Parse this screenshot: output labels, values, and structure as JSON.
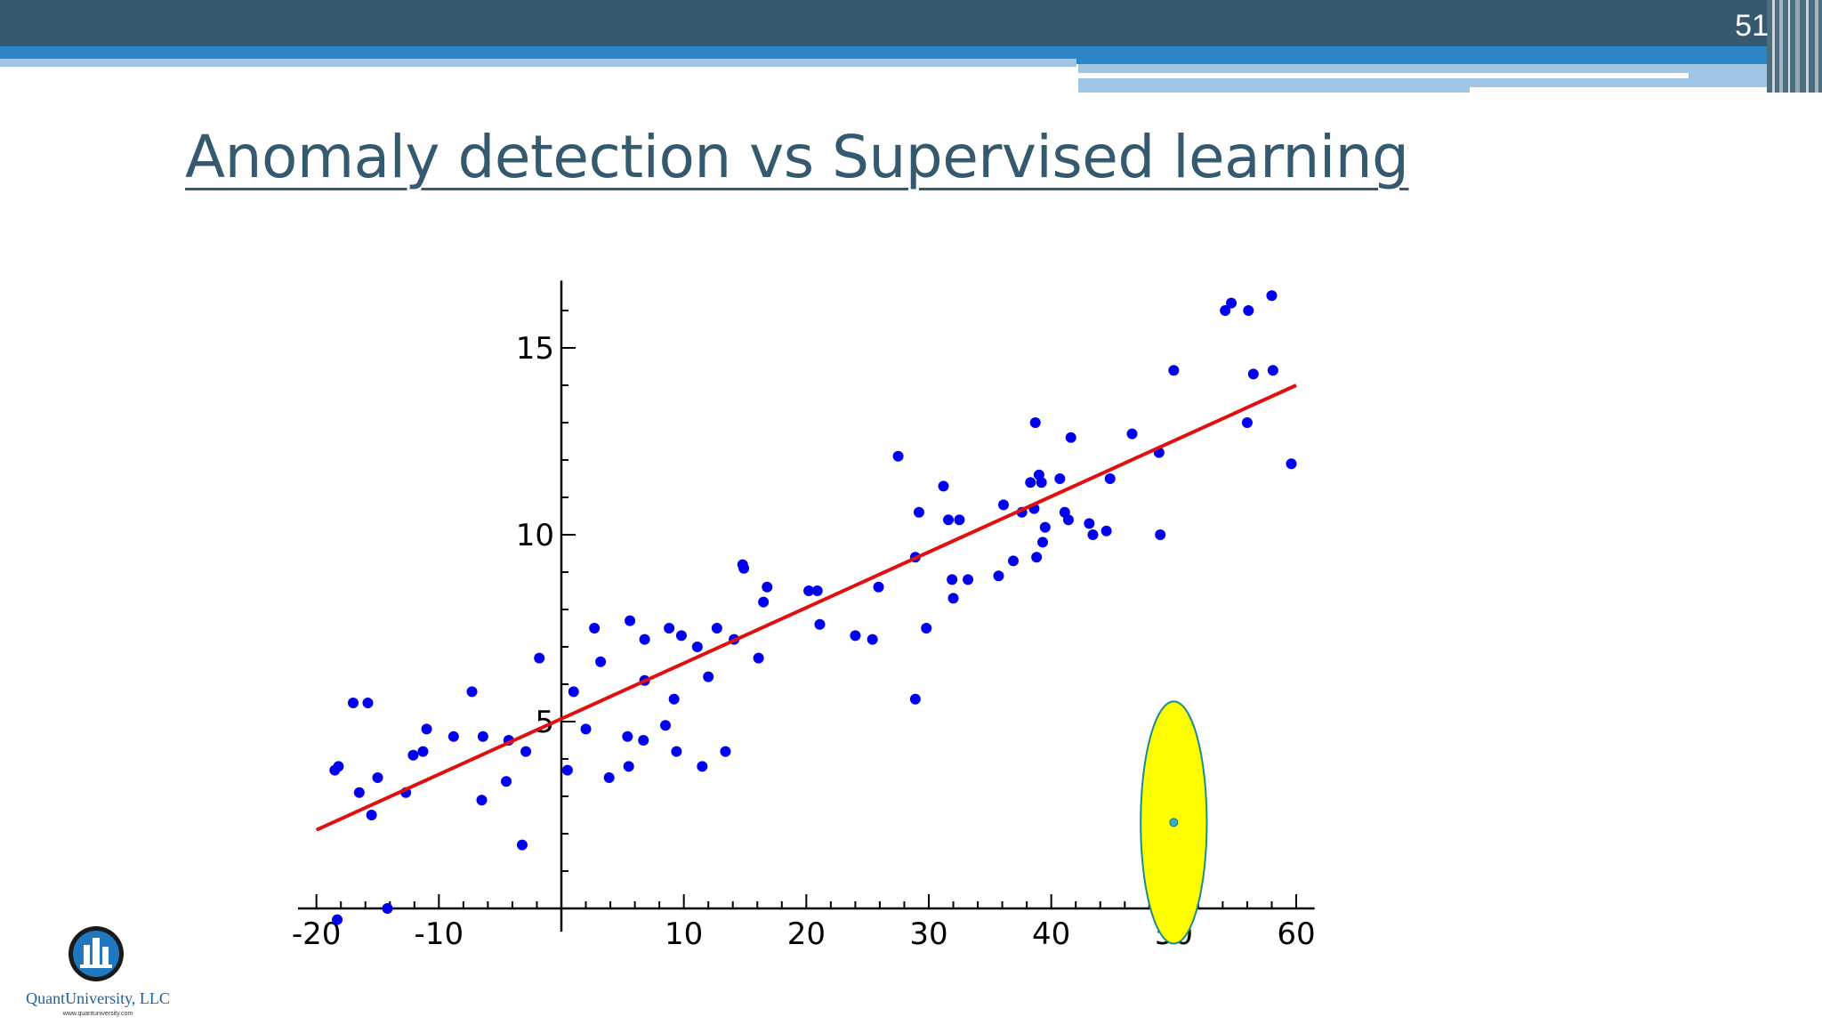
{
  "slide": {
    "number": "51",
    "title": "Anomaly detection vs Supervised learning"
  },
  "logo": {
    "name": "QuantUniversity, LLC",
    "url": "www.quantuniversity.com"
  },
  "colors": {
    "header_dark": "#35596e",
    "header_blue": "#2c86c6",
    "header_light": "#9fc6e6",
    "points": "#0000ee",
    "fit_line": "#e01010",
    "anomaly_fill": "#ffff00",
    "anomaly_stroke": "#1e8c8c",
    "anomaly_point": "#30b0d0"
  },
  "chart_data": {
    "type": "scatter",
    "xlim": [
      -21.5,
      61.5
    ],
    "ylim": [
      0,
      16.8
    ],
    "xticks": [
      -20,
      -10,
      10,
      20,
      30,
      40,
      50,
      60
    ],
    "xtick_labels": [
      "-20",
      "-10",
      "10",
      "20",
      "30",
      "40",
      "50",
      "60"
    ],
    "yticks": [
      5,
      10,
      15
    ],
    "ytick_labels": [
      "5",
      "10",
      "15"
    ],
    "grid": false,
    "points": [
      [
        -18.5,
        3.7
      ],
      [
        -18.2,
        3.8
      ],
      [
        -18.3,
        -0.3
      ],
      [
        -17.0,
        5.5
      ],
      [
        -16.5,
        3.1
      ],
      [
        -15.8,
        5.5
      ],
      [
        -15.5,
        2.5
      ],
      [
        -15.0,
        3.5
      ],
      [
        -14.2,
        0.0
      ],
      [
        -12.7,
        3.1
      ],
      [
        -12.1,
        4.1
      ],
      [
        -11.3,
        4.2
      ],
      [
        -11.0,
        4.8
      ],
      [
        -8.8,
        4.6
      ],
      [
        -7.3,
        5.8
      ],
      [
        -6.5,
        2.9
      ],
      [
        -6.4,
        4.6
      ],
      [
        -4.5,
        3.4
      ],
      [
        -4.3,
        4.5
      ],
      [
        -3.2,
        1.7
      ],
      [
        -2.9,
        4.2
      ],
      [
        -1.8,
        6.7
      ],
      [
        0.5,
        3.7
      ],
      [
        1.0,
        5.8
      ],
      [
        2.0,
        4.8
      ],
      [
        2.7,
        7.5
      ],
      [
        3.2,
        6.6
      ],
      [
        3.9,
        3.5
      ],
      [
        5.4,
        4.6
      ],
      [
        5.5,
        3.8
      ],
      [
        5.6,
        7.7
      ],
      [
        6.7,
        4.5
      ],
      [
        6.8,
        7.2
      ],
      [
        6.8,
        6.1
      ],
      [
        8.5,
        4.9
      ],
      [
        8.8,
        7.5
      ],
      [
        9.2,
        5.6
      ],
      [
        9.4,
        4.2
      ],
      [
        9.8,
        7.3
      ],
      [
        11.1,
        7.0
      ],
      [
        11.5,
        3.8
      ],
      [
        12.0,
        6.2
      ],
      [
        12.7,
        7.5
      ],
      [
        13.4,
        4.2
      ],
      [
        14.1,
        7.2
      ],
      [
        14.8,
        9.2
      ],
      [
        14.9,
        9.1
      ],
      [
        16.1,
        6.7
      ],
      [
        16.5,
        8.2
      ],
      [
        16.8,
        8.6
      ],
      [
        20.2,
        8.5
      ],
      [
        20.9,
        8.5
      ],
      [
        21.1,
        7.6
      ],
      [
        24.0,
        7.3
      ],
      [
        25.4,
        7.2
      ],
      [
        25.9,
        8.6
      ],
      [
        27.5,
        12.1
      ],
      [
        28.9,
        5.6
      ],
      [
        28.9,
        9.4
      ],
      [
        29.2,
        10.6
      ],
      [
        29.8,
        7.5
      ],
      [
        31.2,
        11.3
      ],
      [
        31.6,
        10.4
      ],
      [
        31.9,
        8.8
      ],
      [
        32.0,
        8.3
      ],
      [
        32.5,
        10.4
      ],
      [
        33.2,
        8.8
      ],
      [
        35.7,
        8.9
      ],
      [
        36.1,
        10.8
      ],
      [
        36.9,
        9.3
      ],
      [
        37.6,
        10.6
      ],
      [
        38.3,
        11.4
      ],
      [
        38.6,
        10.7
      ],
      [
        38.7,
        13.0
      ],
      [
        38.8,
        9.4
      ],
      [
        39.0,
        11.6
      ],
      [
        39.2,
        11.4
      ],
      [
        39.3,
        9.8
      ],
      [
        39.5,
        10.2
      ],
      [
        40.7,
        11.5
      ],
      [
        41.1,
        10.6
      ],
      [
        41.4,
        10.4
      ],
      [
        41.6,
        12.6
      ],
      [
        43.1,
        10.3
      ],
      [
        43.4,
        10.0
      ],
      [
        44.5,
        10.1
      ],
      [
        44.8,
        11.5
      ],
      [
        46.6,
        12.7
      ],
      [
        48.8,
        12.2
      ],
      [
        48.9,
        10.0
      ],
      [
        50.0,
        14.4
      ],
      [
        54.2,
        16.0
      ],
      [
        54.7,
        16.2
      ],
      [
        56.0,
        13.0
      ],
      [
        56.1,
        16.0
      ],
      [
        56.5,
        14.3
      ],
      [
        58.0,
        16.4
      ],
      [
        58.1,
        14.4
      ],
      [
        59.6,
        11.9
      ]
    ],
    "fit_line": {
      "x": [
        -20,
        60
      ],
      "y": [
        2.1,
        14.0
      ]
    },
    "anomaly": {
      "x": 50,
      "y": 2.3,
      "rx": 2.7,
      "ry": 1.8
    }
  }
}
